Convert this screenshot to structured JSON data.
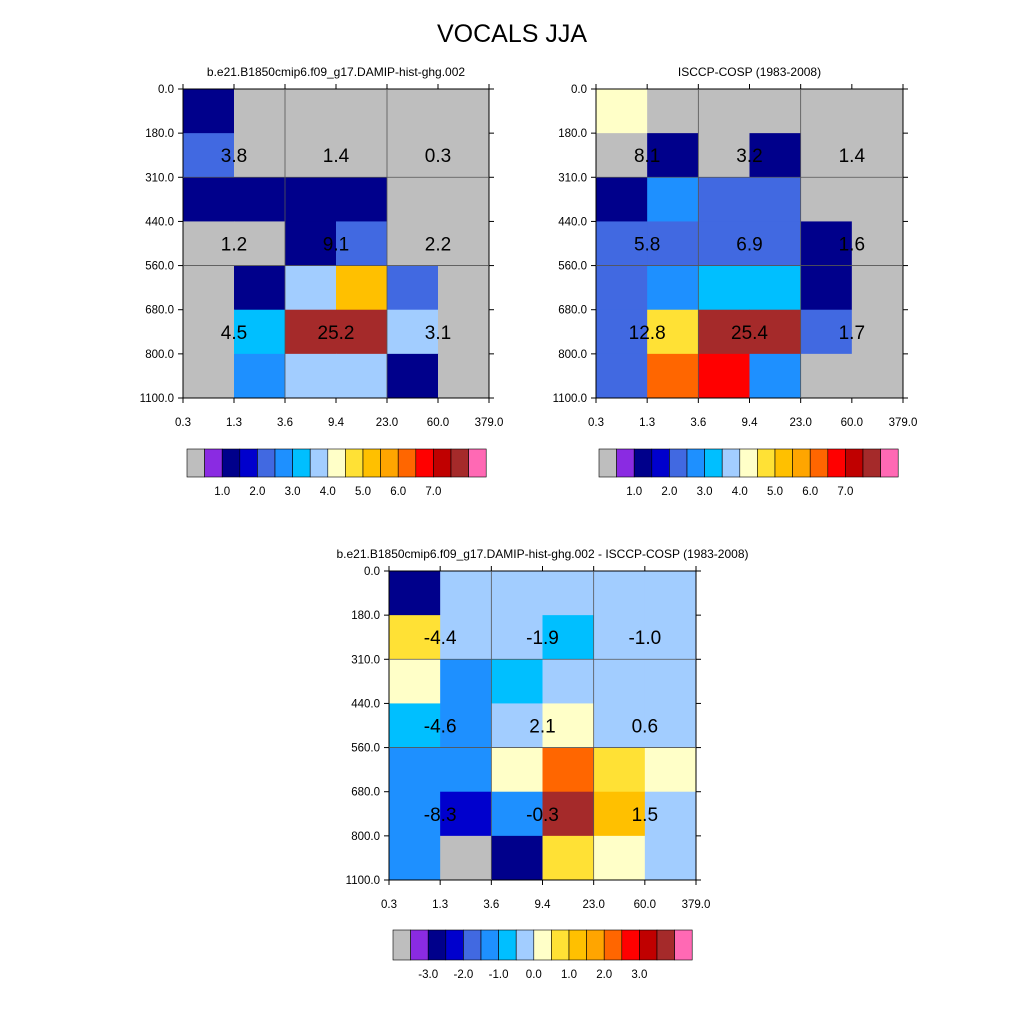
{
  "title": "VOCALS JJA",
  "chart_data": [
    {
      "type": "heatmap",
      "title": "b.e21.B1850cmip6.f09_g17.DAMIP-hist-ghg.002",
      "y_ticks": [
        "0.0",
        "180.0",
        "310.0",
        "440.0",
        "560.0",
        "680.0",
        "800.0",
        "1100.0"
      ],
      "x_ticks": [
        "0.3",
        "1.3",
        "3.6",
        "9.4",
        "23.0",
        "60.0",
        "379.0"
      ],
      "cells": [
        [
          0.5,
          0,
          0,
          0,
          0,
          0
        ],
        [
          1.5,
          0,
          0,
          0,
          0,
          0
        ],
        [
          0.5,
          0.5,
          0.5,
          0.5,
          0,
          0
        ],
        [
          0,
          0,
          0.5,
          1.5,
          0,
          0
        ],
        [
          0,
          0.5,
          3.0,
          4.5,
          1.5,
          0
        ],
        [
          0,
          2.5,
          7.0,
          7.0,
          3.0,
          0
        ],
        [
          0,
          2.0,
          3.0,
          3.0,
          0.5,
          0
        ]
      ],
      "box_labels": [
        [
          "3.8",
          "1.4",
          "0.3"
        ],
        [
          "1.2",
          "9.1",
          "2.2"
        ],
        [
          "4.5",
          "25.2",
          "3.1"
        ]
      ],
      "colorbar": {
        "colors": [
          "#bebebe",
          "#8a2be2",
          "#00008b",
          "#0000cd",
          "#4169e1",
          "#1e90ff",
          "#00bfff",
          "#a2cdff",
          "#ffffc8",
          "#ffe135",
          "#ffc000",
          "#ffa500",
          "#ff6600",
          "#ff0000",
          "#c00000",
          "#a52a2a",
          "#ff69b4"
        ],
        "tick_labels": [
          "1.0",
          "2.0",
          "3.0",
          "4.0",
          "5.0",
          "6.0",
          "7.0"
        ]
      }
    },
    {
      "type": "heatmap",
      "title": "ISCCP-COSP (1983-2008)",
      "y_ticks": [
        "0.0",
        "180.0",
        "310.0",
        "440.0",
        "560.0",
        "680.0",
        "800.0",
        "1100.0"
      ],
      "x_ticks": [
        "0.3",
        "1.3",
        "3.6",
        "9.4",
        "23.0",
        "60.0",
        "379.0"
      ],
      "cells": [
        [
          3.5,
          0,
          0,
          0,
          0,
          0
        ],
        [
          0,
          0.5,
          0,
          0.5,
          0,
          0
        ],
        [
          0.5,
          2.0,
          1.5,
          1.5,
          0,
          0
        ],
        [
          1.5,
          1.5,
          1.5,
          1.5,
          0.5,
          0
        ],
        [
          1.5,
          2.0,
          2.5,
          2.5,
          0.5,
          0
        ],
        [
          1.5,
          4.0,
          7.0,
          7.0,
          1.5,
          0
        ],
        [
          1.5,
          5.5,
          6.0,
          2.0,
          0,
          0
        ]
      ],
      "box_labels": [
        [
          "8.1",
          "3.2",
          "1.4"
        ],
        [
          "5.8",
          "6.9",
          "1.6"
        ],
        [
          "12.8",
          "25.4",
          "1.7"
        ]
      ],
      "colorbar": {
        "colors": [
          "#bebebe",
          "#8a2be2",
          "#00008b",
          "#0000cd",
          "#4169e1",
          "#1e90ff",
          "#00bfff",
          "#a2cdff",
          "#ffffc8",
          "#ffe135",
          "#ffc000",
          "#ffa500",
          "#ff6600",
          "#ff0000",
          "#c00000",
          "#a52a2a",
          "#ff69b4"
        ],
        "tick_labels": [
          "1.0",
          "2.0",
          "3.0",
          "4.0",
          "5.0",
          "6.0",
          "7.0"
        ]
      }
    },
    {
      "type": "heatmap",
      "title": "b.e21.B1850cmip6.f09_g17.DAMIP-hist-ghg.002 - ISCCP-COSP (1983-2008)",
      "y_ticks": [
        "0.0",
        "180.0",
        "310.0",
        "440.0",
        "560.0",
        "680.0",
        "800.0",
        "1100.0"
      ],
      "x_ticks": [
        "0.3",
        "1.3",
        "3.6",
        "9.4",
        "23.0",
        "60.0",
        "379.0"
      ],
      "cells": [
        [
          -2.75,
          -0.25,
          -0.25,
          -0.25,
          -0.25,
          -0.25
        ],
        [
          0.75,
          -0.25,
          -0.25,
          -0.75,
          -0.25,
          -0.25
        ],
        [
          0.25,
          -1.25,
          -0.75,
          -0.25,
          -0.25,
          -0.25
        ],
        [
          -0.75,
          -1.25,
          -0.25,
          0.25,
          -0.25,
          -0.25
        ],
        [
          -1.25,
          -1.25,
          0.25,
          2.25,
          0.75,
          0.25
        ],
        [
          -1.25,
          -2.25,
          -1.25,
          3.5,
          1.25,
          -0.25
        ],
        [
          -1.25,
          -4.0,
          -2.75,
          0.75,
          0.25,
          -0.25
        ]
      ],
      "box_labels": [
        [
          "-4.4",
          "-1.9",
          "-1.0"
        ],
        [
          "-4.6",
          "2.1",
          "0.6"
        ],
        [
          "-8.3",
          "-0.3",
          "1.5"
        ]
      ],
      "colorbar": {
        "colors": [
          "#bebebe",
          "#8a2be2",
          "#00008b",
          "#0000cd",
          "#4169e1",
          "#1e90ff",
          "#00bfff",
          "#a2cdff",
          "#ffffc8",
          "#ffe135",
          "#ffc000",
          "#ffa500",
          "#ff6600",
          "#ff0000",
          "#c00000",
          "#a52a2a",
          "#ff69b4"
        ],
        "tick_labels": [
          "-3.0",
          "-2.0",
          "-1.0",
          "0.0",
          "1.0",
          "2.0",
          "3.0"
        ]
      }
    }
  ]
}
